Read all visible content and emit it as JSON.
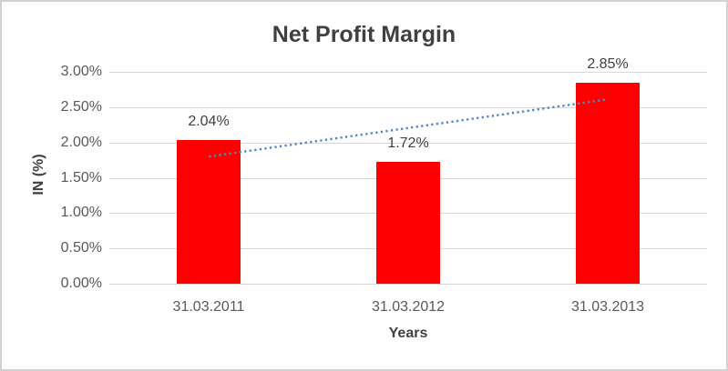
{
  "chart_data": {
    "type": "bar",
    "title": "Net Profit Margin",
    "xlabel": "Years",
    "ylabel": "IN (%)",
    "categories": [
      "31.03.2011",
      "31.03.2012",
      "31.03.2013"
    ],
    "values": [
      2.04,
      1.72,
      2.85
    ],
    "data_labels": [
      "2.04%",
      "1.72%",
      "2.85%"
    ],
    "ytick_labels": [
      "0.00%",
      "0.50%",
      "1.00%",
      "1.50%",
      "2.00%",
      "2.50%",
      "3.00%"
    ],
    "ytick_values": [
      0,
      0.5,
      1,
      1.5,
      2,
      2.5,
      3
    ],
    "ylim": [
      0,
      3
    ],
    "grid": true,
    "legend": "none",
    "bar_color": "#ff0000",
    "gridline_color": "#d9d9d9",
    "title_color": "#404040",
    "tick_color": "#595959",
    "trendline": {
      "type": "linear",
      "style": "dotted",
      "color": "#4e87c8",
      "start_value": 1.8,
      "end_value": 2.61
    }
  }
}
